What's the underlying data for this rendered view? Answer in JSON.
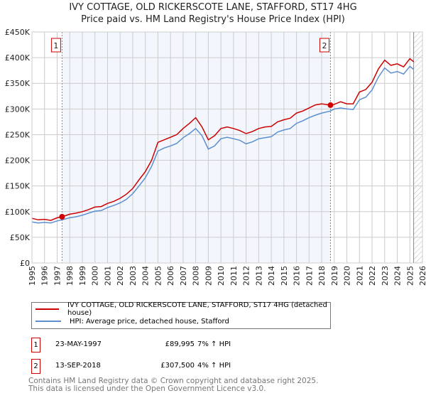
{
  "title_line1": "IVY COTTAGE, OLD RICKERSCOTE LANE, STAFFORD, ST17 4HG",
  "title_line2": "Price paid vs. HM Land Registry's House Price Index (HPI)",
  "chart_data": {
    "type": "line",
    "title": "IVY COTTAGE, OLD RICKERSCOTE LANE, STAFFORD, ST17 4HG - Price paid vs. HM Land Registry's House Price Index (HPI)",
    "xlabel": "",
    "ylabel": "",
    "xlim": [
      1995,
      2026
    ],
    "ylim": [
      0,
      450000
    ],
    "x_ticks": [
      1995,
      1996,
      1997,
      1998,
      1999,
      2000,
      2001,
      2002,
      2003,
      2004,
      2005,
      2006,
      2007,
      2008,
      2009,
      2010,
      2011,
      2012,
      2013,
      2014,
      2015,
      2016,
      2017,
      2018,
      2019,
      2020,
      2021,
      2022,
      2023,
      2024,
      2025,
      2026
    ],
    "y_ticks": [
      0,
      50000,
      100000,
      150000,
      200000,
      250000,
      300000,
      350000,
      400000,
      450000
    ],
    "y_tick_labels": [
      "£0",
      "£50K",
      "£100K",
      "£150K",
      "£200K",
      "£250K",
      "£300K",
      "£350K",
      "£400K",
      "£450K"
    ],
    "grid": true,
    "series": [
      {
        "name": "IVY COTTAGE, OLD RICKERSCOTE LANE, STAFFORD, ST17 4HG (detached house)",
        "color": "#cc0000",
        "x": [
          1995,
          1995.5,
          1996,
          1996.5,
          1997,
          1997.4,
          1998,
          1998.5,
          1999,
          1999.5,
          2000,
          2000.5,
          2001,
          2001.5,
          2002,
          2002.5,
          2003,
          2003.5,
          2004,
          2004.5,
          2005,
          2005.5,
          2006,
          2006.5,
          2007,
          2007.5,
          2008,
          2008.5,
          2009,
          2009.5,
          2010,
          2010.5,
          2011,
          2011.5,
          2012,
          2012.5,
          2013,
          2013.5,
          2014,
          2014.5,
          2015,
          2015.5,
          2016,
          2016.5,
          2017,
          2017.5,
          2018,
          2018.7,
          2019,
          2019.5,
          2020,
          2020.5,
          2021,
          2021.5,
          2022,
          2022.5,
          2023,
          2023.5,
          2024,
          2024.5,
          2025,
          2025.3
        ],
        "y": [
          87000,
          84000,
          85000,
          83000,
          88000,
          89995,
          95000,
          97000,
          100000,
          104000,
          109000,
          110000,
          116000,
          120000,
          126000,
          134000,
          145000,
          162000,
          178000,
          200000,
          235000,
          240000,
          245000,
          250000,
          262000,
          272000,
          283000,
          265000,
          240000,
          248000,
          262000,
          265000,
          262000,
          258000,
          252000,
          256000,
          262000,
          265000,
          266000,
          275000,
          279000,
          282000,
          292000,
          296000,
          302000,
          308000,
          310000,
          307500,
          309000,
          314000,
          310000,
          310000,
          333000,
          338000,
          352000,
          378000,
          395000,
          385000,
          388000,
          382000,
          398000,
          392000
        ]
      },
      {
        "name": "HPI: Average price, detached house, Stafford",
        "color": "#5b8fd0",
        "x": [
          1995,
          1995.5,
          1996,
          1996.5,
          1997,
          1997.4,
          1998,
          1998.5,
          1999,
          1999.5,
          2000,
          2000.5,
          2001,
          2001.5,
          2002,
          2002.5,
          2003,
          2003.5,
          2004,
          2004.5,
          2005,
          2005.5,
          2006,
          2006.5,
          2007,
          2007.5,
          2008,
          2008.5,
          2009,
          2009.5,
          2010,
          2010.5,
          2011,
          2011.5,
          2012,
          2012.5,
          2013,
          2013.5,
          2014,
          2014.5,
          2015,
          2015.5,
          2016,
          2016.5,
          2017,
          2017.5,
          2018,
          2018.7,
          2019,
          2019.5,
          2020,
          2020.5,
          2021,
          2021.5,
          2022,
          2022.5,
          2023,
          2023.5,
          2024,
          2024.5,
          2025,
          2025.3
        ],
        "y": [
          80000,
          78000,
          79000,
          78000,
          82000,
          84000,
          88000,
          90000,
          93000,
          97000,
          101000,
          102000,
          108000,
          112000,
          117000,
          124000,
          135000,
          150000,
          166000,
          188000,
          218000,
          224000,
          228000,
          233000,
          244000,
          252000,
          262000,
          248000,
          222000,
          228000,
          242000,
          245000,
          242000,
          239000,
          232000,
          236000,
          242000,
          244000,
          246000,
          255000,
          259000,
          262000,
          272000,
          277000,
          283000,
          288000,
          292000,
          296000,
          300000,
          302000,
          300000,
          299000,
          318000,
          323000,
          337000,
          362000,
          380000,
          370000,
          373000,
          368000,
          383000,
          377000
        ]
      }
    ],
    "annotations": [
      {
        "label": "1",
        "x": 1997.39,
        "y": 89995
      },
      {
        "label": "2",
        "x": 2018.7,
        "y": 307500
      }
    ],
    "shaded_range": [
      1997.39,
      2018.7
    ],
    "hatched_from": 2025.3
  },
  "legend": {
    "items": [
      {
        "label": "IVY COTTAGE, OLD RICKERSCOTE LANE, STAFFORD, ST17 4HG (detached house)",
        "color": "#cc0000"
      },
      {
        "label": "HPI: Average price, detached house, Stafford",
        "color": "#5b8fd0"
      }
    ]
  },
  "transactions": [
    {
      "num": "1",
      "date": "23-MAY-1997",
      "price": "£89,995",
      "hpi": "7% ↑ HPI"
    },
    {
      "num": "2",
      "date": "13-SEP-2018",
      "price": "£307,500",
      "hpi": "4% ↑ HPI"
    }
  ],
  "footer": {
    "line1": "Contains HM Land Registry data © Crown copyright and database right 2025.",
    "line2": "This data is licensed under the Open Government Licence v3.0."
  }
}
